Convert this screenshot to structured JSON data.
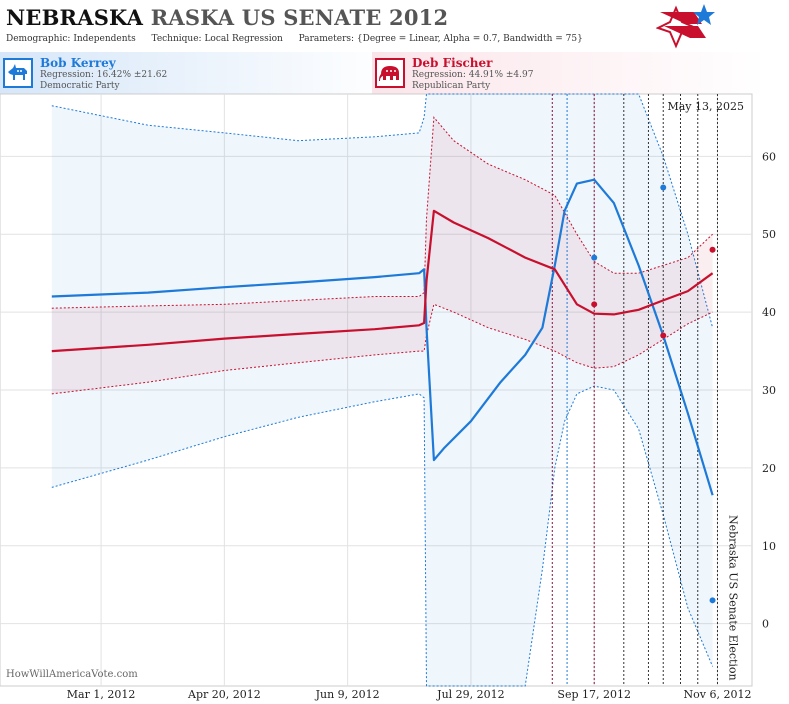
{
  "header": {
    "state": "NEBRASKA",
    "race": "RASKA US SENATE 2012",
    "demographic_label": "Demographic:",
    "demographic_value": "Independents",
    "technique_label": "Technique:",
    "technique_value": "Local Regression",
    "parameters_label": "Parameters:",
    "parameters_value": "{Degree = Linear, Alpha = 0.7, Bandwidth = 75}"
  },
  "candidates": [
    {
      "name": "Bob Kerrey",
      "regression": "Regression: 16.42% ±21.62",
      "party": "Democratic Party",
      "color": "#1e7ad8",
      "icon": "donkey-icon"
    },
    {
      "name": "Deb Fischer",
      "regression": "Regression: 44.91% ±4.97",
      "party": "Republican Party",
      "color": "#c8102e",
      "icon": "elephant-icon"
    }
  ],
  "watermark": "HowWillAmericaVote.com",
  "chart_data": {
    "type": "line",
    "date_label": "May 13, 2025",
    "event_label": "Nebraska US Senate Election",
    "x_ticks": [
      "Mar 1, 2012",
      "Apr 20, 2012",
      "Jun 9, 2012",
      "Jul 29, 2012",
      "Sep 17, 2012",
      "Nov 6, 2012"
    ],
    "y_ticks": [
      0,
      10,
      20,
      30,
      40,
      50,
      60
    ],
    "ylim": [
      -8,
      68
    ],
    "xlim": [
      "2012-01-20",
      "2012-11-20"
    ],
    "grid": true,
    "series": [
      {
        "name": "Bob Kerrey",
        "color": "#1e7ad8",
        "x": [
          "2012-02-10",
          "2012-03-20",
          "2012-04-20",
          "2012-05-20",
          "2012-06-20",
          "2012-07-08",
          "2012-07-10",
          "2012-07-11",
          "2012-07-14",
          "2012-07-18",
          "2012-07-29",
          "2012-08-10",
          "2012-08-20",
          "2012-08-27",
          "2012-09-01",
          "2012-09-05",
          "2012-09-10",
          "2012-09-17",
          "2012-09-25",
          "2012-10-05",
          "2012-10-15",
          "2012-10-25",
          "2012-11-04"
        ],
        "y": [
          42,
          42.5,
          43.2,
          43.8,
          44.5,
          45.0,
          45.5,
          38,
          21,
          22.5,
          26,
          31,
          34.5,
          38,
          46,
          53,
          56.5,
          57,
          54,
          46,
          37,
          27,
          16.5
        ],
        "lower": [
          17.5,
          21,
          24,
          26.5,
          28.5,
          29.5,
          29.0,
          -8,
          -8,
          -8,
          -8,
          -8,
          -8,
          7,
          20,
          26,
          29.5,
          30.5,
          30,
          25,
          14,
          2,
          -5.5
        ],
        "upper": [
          66.5,
          64,
          63,
          62,
          62.5,
          63,
          65,
          68,
          68,
          68,
          68,
          68,
          68,
          68,
          68,
          68,
          68,
          68,
          68,
          68,
          60,
          50,
          38
        ]
      },
      {
        "name": "Deb Fischer",
        "color": "#c8102e",
        "x": [
          "2012-02-10",
          "2012-03-20",
          "2012-04-20",
          "2012-05-20",
          "2012-06-20",
          "2012-07-08",
          "2012-07-10",
          "2012-07-11",
          "2012-07-14",
          "2012-07-22",
          "2012-08-05",
          "2012-08-20",
          "2012-09-01",
          "2012-09-10",
          "2012-09-17",
          "2012-09-25",
          "2012-10-05",
          "2012-10-15",
          "2012-10-25",
          "2012-11-04"
        ],
        "y": [
          35,
          35.8,
          36.6,
          37.2,
          37.8,
          38.3,
          38.6,
          44,
          53,
          51.5,
          49.5,
          47,
          45.5,
          41,
          39.8,
          39.7,
          40.3,
          41.5,
          42.7,
          45
        ],
        "lower": [
          29.5,
          31,
          32.5,
          33.5,
          34.5,
          35,
          35,
          37,
          41,
          40,
          38,
          36.5,
          35,
          33.5,
          32.8,
          33,
          34.5,
          36.5,
          38.5,
          40
        ],
        "upper": [
          40.5,
          40.8,
          41,
          41.5,
          42,
          42,
          42.5,
          52,
          65,
          62,
          59,
          57,
          55,
          50,
          46.5,
          45,
          45,
          46,
          47,
          50
        ]
      }
    ],
    "polls": [
      {
        "candidate": "Bob Kerrey",
        "date": "2012-09-17",
        "value": 47
      },
      {
        "candidate": "Bob Kerrey",
        "date": "2012-10-15",
        "value": 56
      },
      {
        "candidate": "Bob Kerrey",
        "date": "2012-11-04",
        "value": 3
      },
      {
        "candidate": "Deb Fischer",
        "date": "2012-09-17",
        "value": 41
      },
      {
        "candidate": "Deb Fischer",
        "date": "2012-10-15",
        "value": 37
      },
      {
        "candidate": "Deb Fischer",
        "date": "2012-11-04",
        "value": 48
      }
    ],
    "poll_lines": [
      {
        "date": "2012-08-31",
        "color": "#8a1040"
      },
      {
        "date": "2012-09-06",
        "color": "#1e7ad8"
      },
      {
        "date": "2012-09-17",
        "color": "#8a1040"
      },
      {
        "date": "2012-09-29",
        "color": "#333333"
      },
      {
        "date": "2012-10-09",
        "color": "#333333"
      },
      {
        "date": "2012-10-15",
        "color": "#333333"
      },
      {
        "date": "2012-10-22",
        "color": "#333333"
      },
      {
        "date": "2012-10-29",
        "color": "#333333"
      },
      {
        "date": "2012-11-06",
        "color": "#333333"
      }
    ]
  }
}
